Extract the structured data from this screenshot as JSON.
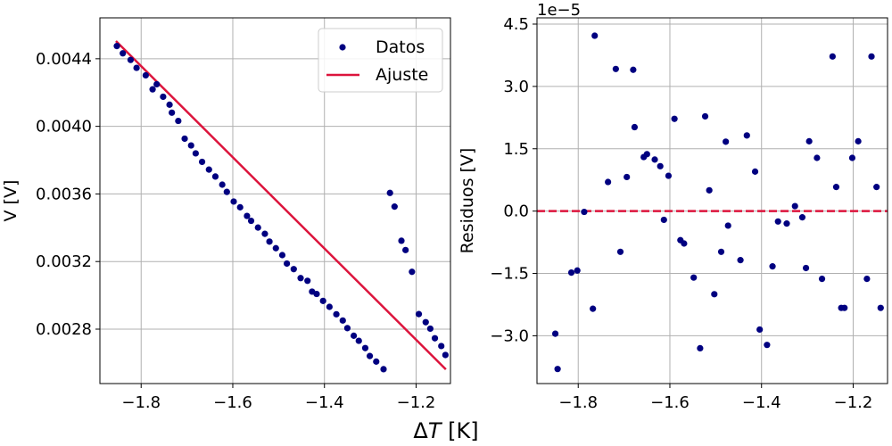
{
  "chart_data": [
    {
      "type": "scatter",
      "xlabel": "",
      "ylabel": "V [V]",
      "xlim": [
        -1.89,
        -1.125
      ],
      "ylim": [
        0.002478,
        0.004642
      ],
      "xticks": [
        -1.8,
        -1.6,
        -1.4,
        -1.2
      ],
      "xtick_labels": [
        "−1.8",
        "−1.6",
        "−1.4",
        "−1.2"
      ],
      "yticks": [
        0.0028,
        0.0032,
        0.0036,
        0.004,
        0.0044
      ],
      "ytick_labels": [
        "0.0028",
        "0.0032",
        "0.0036",
        "0.0040",
        "0.0044"
      ],
      "grid": true,
      "legend": {
        "position": "top-right",
        "labels": [
          "Datos",
          "Ajuste"
        ]
      },
      "series": [
        {
          "name": "Datos",
          "kind": "scatter",
          "color": "#000080",
          "x": [
            -1.853,
            -1.84,
            -1.823,
            -1.81,
            -1.79,
            -1.775,
            -1.766,
            -1.752,
            -1.738,
            -1.733,
            -1.719,
            -1.705,
            -1.691,
            -1.681,
            -1.667,
            -1.652,
            -1.638,
            -1.623,
            -1.613,
            -1.598,
            -1.584,
            -1.569,
            -1.56,
            -1.545,
            -1.53,
            -1.52,
            -1.506,
            -1.492,
            -1.482,
            -1.467,
            -1.452,
            -1.437,
            -1.427,
            -1.417,
            -1.403,
            -1.389,
            -1.374,
            -1.36,
            -1.35,
            -1.336,
            -1.325,
            -1.311,
            -1.301,
            -1.287,
            -1.271,
            -1.257,
            -1.247,
            -1.232,
            -1.223,
            -1.209,
            -1.194,
            -1.179,
            -1.169,
            -1.159,
            -1.145,
            -1.136
          ],
          "y": [
            0.004475,
            0.004432,
            0.004393,
            0.004346,
            0.004302,
            0.004219,
            0.004249,
            0.004175,
            0.004128,
            0.004081,
            0.004032,
            0.003927,
            0.003887,
            0.00384,
            0.00379,
            0.003744,
            0.003703,
            0.003655,
            0.003612,
            0.003555,
            0.003521,
            0.00347,
            0.003441,
            0.003401,
            0.003364,
            0.003318,
            0.003279,
            0.003238,
            0.003188,
            0.003155,
            0.003102,
            0.003086,
            0.003022,
            0.003008,
            0.002967,
            0.002932,
            0.002888,
            0.002851,
            0.002806,
            0.002761,
            0.002731,
            0.002688,
            0.002641,
            0.002608,
            0.002563,
            0.003606,
            0.003525,
            0.003323,
            0.003268,
            0.003139,
            0.002889,
            0.002841,
            0.002803,
            0.002746,
            0.0027,
            0.002647
          ]
        },
        {
          "name": "Ajuste",
          "kind": "line",
          "color": "#dc143c",
          "x": [
            -1.855,
            -1.135
          ],
          "y": [
            0.004505,
            0.002562
          ]
        }
      ]
    },
    {
      "type": "scatter",
      "xlabel": "",
      "ylabel": "Residuos [V]",
      "offset_label": "1e−5",
      "xlim": [
        -1.89,
        -1.125
      ],
      "ylim": [
        -4.15,
        4.65
      ],
      "xticks": [
        -1.8,
        -1.6,
        -1.4,
        -1.2
      ],
      "xtick_labels": [
        "−1.8",
        "−1.6",
        "−1.4",
        "−1.2"
      ],
      "yticks": [
        -3.0,
        -1.5,
        0.0,
        1.5,
        3.0,
        4.5
      ],
      "ytick_labels": [
        "−3.0",
        "−1.5",
        "0.0",
        "1.5",
        "3.0",
        "4.5"
      ],
      "grid": true,
      "zero_line_color": "#dc143c",
      "series": [
        {
          "kind": "scatter",
          "color": "#000080",
          "x": [
            -1.85,
            -1.845,
            -1.815,
            -1.802,
            -1.787,
            -1.768,
            -1.764,
            -1.735,
            -1.718,
            -1.708,
            -1.694,
            -1.68,
            -1.677,
            -1.657,
            -1.65,
            -1.633,
            -1.621,
            -1.613,
            -1.603,
            -1.59,
            -1.577,
            -1.569,
            -1.548,
            -1.534,
            -1.523,
            -1.514,
            -1.503,
            -1.488,
            -1.478,
            -1.473,
            -1.446,
            -1.432,
            -1.414,
            -1.404,
            -1.388,
            -1.376,
            -1.364,
            -1.345,
            -1.327,
            -1.311,
            -1.303,
            -1.296,
            -1.279,
            -1.268,
            -1.245,
            -1.237,
            -1.226,
            -1.219,
            -1.202,
            -1.189,
            -1.17,
            -1.16,
            -1.149,
            -1.14
          ],
          "y": [
            -2.95,
            -3.8,
            -1.48,
            -1.43,
            -0.02,
            -2.35,
            4.22,
            0.7,
            3.42,
            -0.98,
            0.82,
            3.4,
            2.02,
            1.3,
            1.37,
            1.24,
            1.08,
            -0.21,
            0.85,
            2.22,
            -0.7,
            -0.78,
            -1.6,
            -3.3,
            2.28,
            0.5,
            -2.0,
            -0.98,
            1.67,
            -0.35,
            -1.18,
            1.82,
            0.95,
            -2.85,
            -3.22,
            -1.33,
            -0.25,
            -0.3,
            0.12,
            -0.15,
            -1.37,
            1.68,
            1.28,
            -1.63,
            3.72,
            0.58,
            -2.33,
            -2.33,
            1.28,
            1.68,
            -1.63,
            3.72,
            0.58,
            -2.33
          ]
        }
      ]
    }
  ],
  "shared_xlabel": "ΔT [K]"
}
